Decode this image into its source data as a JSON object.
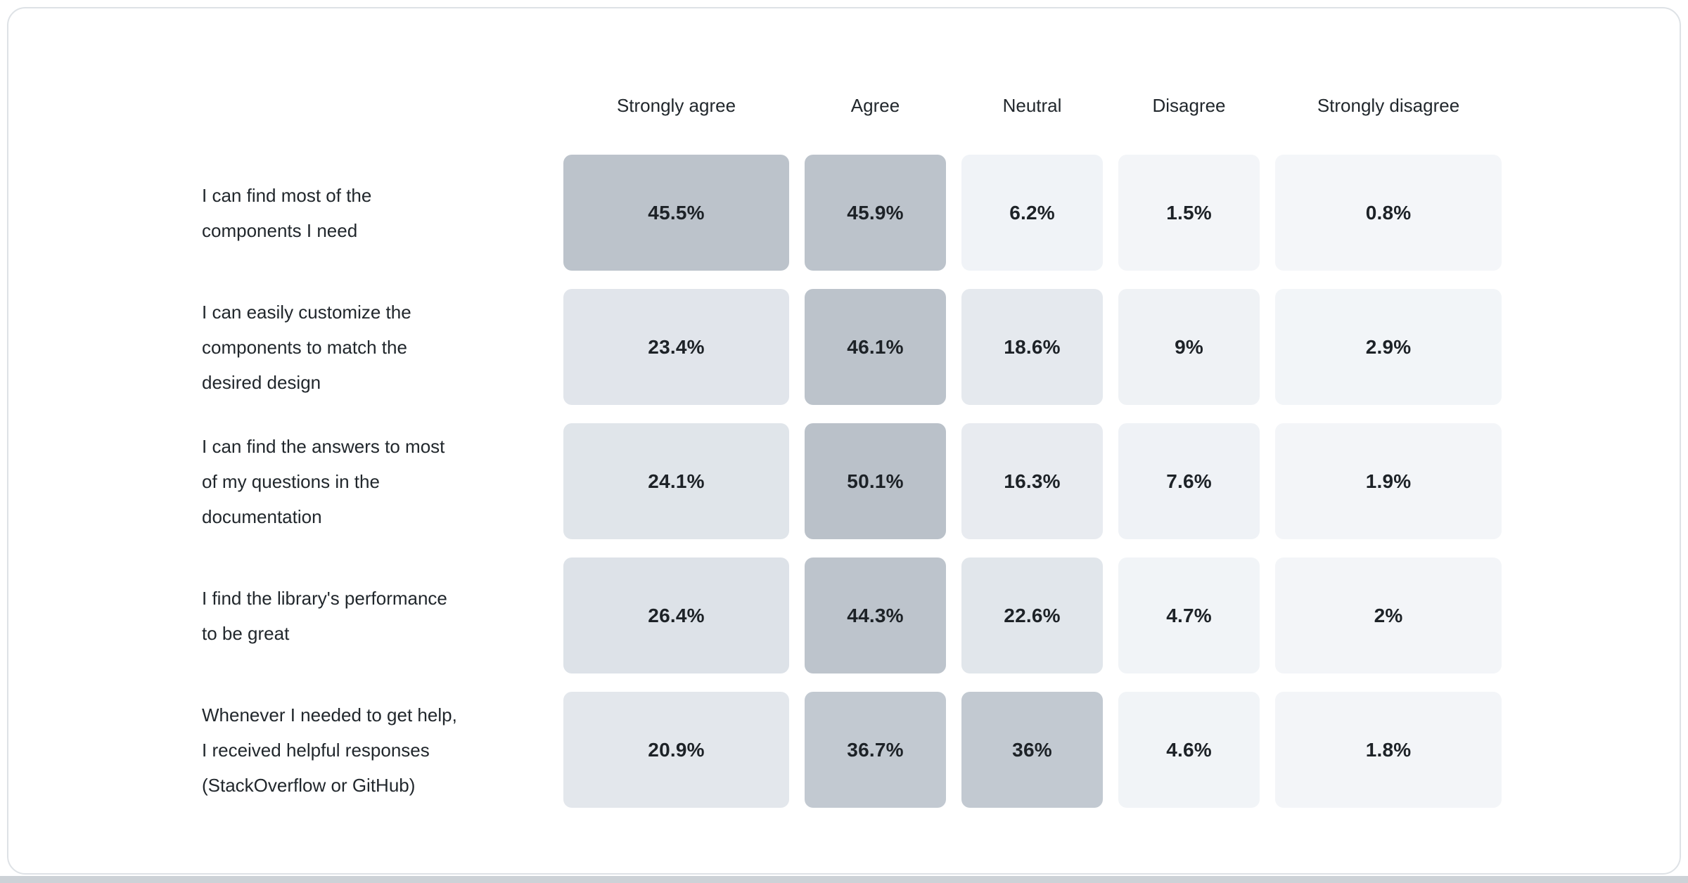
{
  "table": {
    "columns": [
      "Strongly agree",
      "Agree",
      "Neutral",
      "Disagree",
      "Strongly disagree"
    ],
    "rows": [
      {
        "label_lines": [
          "I can find most of the",
          "components I need"
        ],
        "cells": [
          {
            "text": "45.5%",
            "value": 45.5
          },
          {
            "text": "45.9%",
            "value": 45.9
          },
          {
            "text": "6.2%",
            "value": 6.2
          },
          {
            "text": "1.5%",
            "value": 1.5
          },
          {
            "text": "0.8%",
            "value": 0.8
          }
        ]
      },
      {
        "label_lines": [
          "I can easily customize the",
          "components to match the",
          "desired design"
        ],
        "cells": [
          {
            "text": "23.4%",
            "value": 23.4
          },
          {
            "text": "46.1%",
            "value": 46.1
          },
          {
            "text": "18.6%",
            "value": 18.6
          },
          {
            "text": "9%",
            "value": 9
          },
          {
            "text": "2.9%",
            "value": 2.9
          }
        ]
      },
      {
        "label_lines": [
          "I can find the answers to most",
          "of my questions in the",
          "documentation"
        ],
        "cells": [
          {
            "text": "24.1%",
            "value": 24.1
          },
          {
            "text": "50.1%",
            "value": 50.1
          },
          {
            "text": "16.3%",
            "value": 16.3
          },
          {
            "text": "7.6%",
            "value": 7.6
          },
          {
            "text": "1.9%",
            "value": 1.9
          }
        ]
      },
      {
        "label_lines": [
          "I find the library's performance",
          "to be great"
        ],
        "cells": [
          {
            "text": "26.4%",
            "value": 26.4
          },
          {
            "text": "44.3%",
            "value": 44.3
          },
          {
            "text": "22.6%",
            "value": 22.6
          },
          {
            "text": "4.7%",
            "value": 4.7
          },
          {
            "text": "2%",
            "value": 2
          }
        ]
      },
      {
        "label_lines": [
          "Whenever I needed to get help,",
          "I received helpful responses",
          "(StackOverflow or GitHub)"
        ],
        "cells": [
          {
            "text": "20.9%",
            "value": 20.9
          },
          {
            "text": "36.7%",
            "value": 36.7
          },
          {
            "text": "36%",
            "value": 36
          },
          {
            "text": "4.6%",
            "value": 4.6
          },
          {
            "text": "1.8%",
            "value": 1.8
          }
        ]
      }
    ]
  },
  "heat": {
    "stops": [
      [
        0,
        "#f4f6f9"
      ],
      [
        10,
        "#eef1f5"
      ],
      [
        20,
        "#e4e8ed"
      ],
      [
        26,
        "#dee3e9"
      ],
      [
        36,
        "#c2c9d1"
      ],
      [
        46,
        "#bcc3cb"
      ],
      [
        51,
        "#b9c0c9"
      ]
    ],
    "text_color": "#1d2227",
    "card_border_color": "#dee2e6",
    "bottom_edge_color": "#cdd2d7"
  },
  "chart_data": {
    "type": "heatmap",
    "title": "",
    "columns": [
      "Strongly agree",
      "Agree",
      "Neutral",
      "Disagree",
      "Strongly disagree"
    ],
    "rows": [
      "I can find most of the components I need",
      "I can easily customize the components to match the desired design",
      "I can find the answers to most of my questions in the documentation",
      "I find the library's performance to be great",
      "Whenever I needed to get help, I received helpful responses (StackOverflow or GitHub)"
    ],
    "values_percent": [
      [
        45.5,
        45.9,
        6.2,
        1.5,
        0.8
      ],
      [
        23.4,
        46.1,
        18.6,
        9,
        2.9
      ],
      [
        24.1,
        50.1,
        16.3,
        7.6,
        1.9
      ],
      [
        26.4,
        44.3,
        22.6,
        4.7,
        2
      ],
      [
        20.9,
        36.7,
        36,
        4.6,
        1.8
      ]
    ],
    "value_labels": [
      [
        "45.5%",
        "45.9%",
        "6.2%",
        "1.5%",
        "0.8%"
      ],
      [
        "23.4%",
        "46.1%",
        "18.6%",
        "9%",
        "2.9%"
      ],
      [
        "24.1%",
        "50.1%",
        "16.3%",
        "7.6%",
        "1.9%"
      ],
      [
        "26.4%",
        "44.3%",
        "22.6%",
        "4.7%",
        "2%"
      ],
      [
        "20.9%",
        "36.7%",
        "36%",
        "4.6%",
        "1.8%"
      ]
    ],
    "color_scale": {
      "low": "#f4f6f9",
      "high": "#b9c0c9",
      "domain": [
        0,
        50
      ]
    },
    "legend_position": "none",
    "grid": false
  }
}
